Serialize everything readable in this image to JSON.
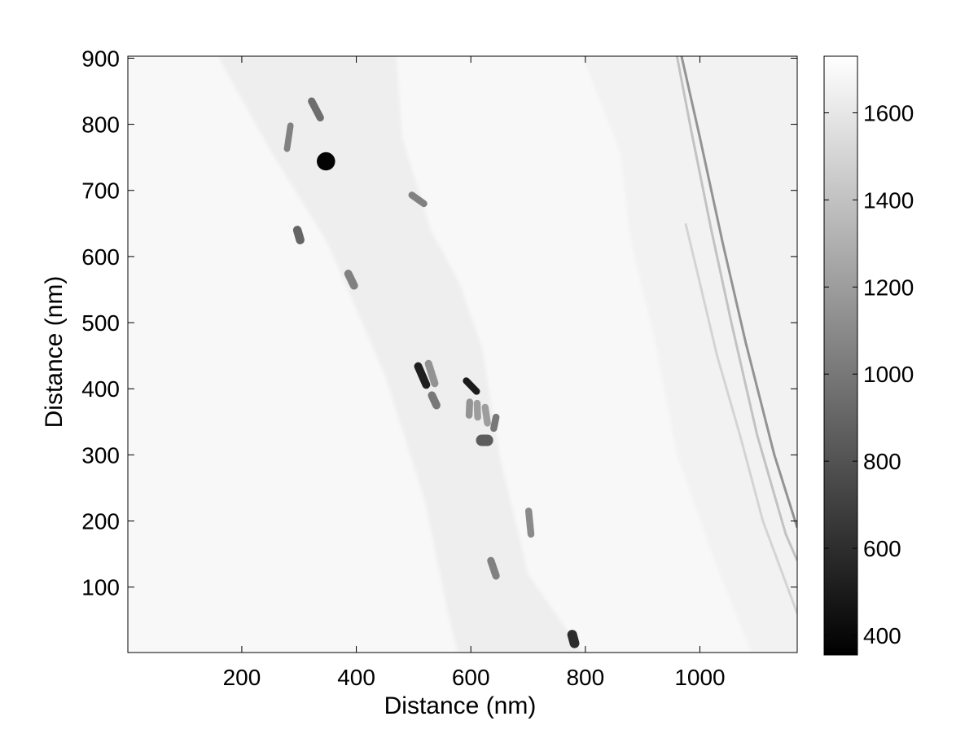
{
  "chart_data": {
    "type": "heatmap",
    "title": "",
    "xlabel": "Distance (nm)",
    "ylabel": "Distance (nm)",
    "xlim": [
      1,
      1170
    ],
    "ylim": [
      1,
      903
    ],
    "x_ticks": [
      200,
      400,
      600,
      800,
      1000
    ],
    "y_ticks": [
      100,
      200,
      300,
      400,
      500,
      600,
      700,
      800,
      900
    ],
    "colorbar": {
      "colormap": "gray",
      "range": [
        355,
        1730
      ],
      "ticks": [
        400,
        600,
        800,
        1000,
        1200,
        1400,
        1600
      ]
    },
    "background_level": 1690,
    "features": [
      {
        "kind": "strip",
        "description_level": 1640,
        "left_edge": [
          [
            158,
            903
          ],
          [
            250,
            760
          ],
          [
            350,
            620
          ],
          [
            450,
            420
          ],
          [
            520,
            230
          ],
          [
            560,
            60
          ],
          [
            577,
            1
          ]
        ],
        "right_edge": [
          [
            470,
            903
          ],
          [
            480,
            780
          ],
          [
            530,
            640
          ],
          [
            580,
            560
          ],
          [
            620,
            460
          ],
          [
            650,
            300
          ],
          [
            700,
            120
          ],
          [
            795,
            1
          ]
        ]
      },
      {
        "kind": "strip",
        "description_level": 1660,
        "left_edge": [
          [
            795,
            903
          ],
          [
            860,
            760
          ],
          [
            880,
            620
          ],
          [
            920,
            480
          ],
          [
            960,
            300
          ],
          [
            1030,
            130
          ],
          [
            1090,
            1
          ]
        ],
        "right_edge": [
          [
            1170,
            903
          ],
          [
            1170,
            1
          ]
        ]
      },
      {
        "kind": "line",
        "level": 1150,
        "points": [
          [
            968,
            903
          ],
          [
            1000,
            780
          ],
          [
            1040,
            620
          ],
          [
            1080,
            470
          ],
          [
            1130,
            300
          ],
          [
            1170,
            190
          ]
        ]
      },
      {
        "kind": "line",
        "level": 1400,
        "points": [
          [
            960,
            903
          ],
          [
            985,
            790
          ],
          [
            1020,
            640
          ],
          [
            1055,
            500
          ],
          [
            1100,
            330
          ],
          [
            1150,
            180
          ],
          [
            1170,
            140
          ]
        ]
      },
      {
        "kind": "line",
        "level": 1500,
        "points": [
          [
            975,
            650
          ],
          [
            1000,
            560
          ],
          [
            1030,
            450
          ],
          [
            1070,
            330
          ],
          [
            1110,
            200
          ],
          [
            1170,
            60
          ]
        ]
      },
      {
        "kind": "rod",
        "x": [
          322,
          337
        ],
        "y": [
          835,
          810
        ],
        "level": 950,
        "width": 13
      },
      {
        "kind": "rod",
        "x": [
          285,
          279
        ],
        "y": [
          798,
          763
        ],
        "level": 1050,
        "width": 11
      },
      {
        "kind": "dot",
        "x": 347,
        "y": 744,
        "r": 16,
        "level": 370
      },
      {
        "kind": "rod",
        "x": [
          497,
          518
        ],
        "y": [
          693,
          680
        ],
        "level": 1050,
        "width": 12
      },
      {
        "kind": "rod",
        "x": [
          297,
          302
        ],
        "y": [
          640,
          625
        ],
        "level": 900,
        "width": 15
      },
      {
        "kind": "rod",
        "x": [
          386,
          396
        ],
        "y": [
          574,
          556
        ],
        "level": 1050,
        "width": 14
      },
      {
        "kind": "rod",
        "x": [
          508,
          522
        ],
        "y": [
          434,
          406
        ],
        "level": 520,
        "width": 14
      },
      {
        "kind": "rod",
        "x": [
          526,
          537
        ],
        "y": [
          438,
          408
        ],
        "level": 1150,
        "width": 13
      },
      {
        "kind": "rod",
        "x": [
          532,
          540
        ],
        "y": [
          390,
          375
        ],
        "level": 1000,
        "width": 14
      },
      {
        "kind": "rod",
        "x": [
          592,
          610
        ],
        "y": [
          412,
          396
        ],
        "level": 500,
        "width": 12
      },
      {
        "kind": "rod",
        "x": [
          598,
          597
        ],
        "y": [
          380,
          360
        ],
        "level": 1150,
        "width": 12
      },
      {
        "kind": "rod",
        "x": [
          611,
          612
        ],
        "y": [
          378,
          357
        ],
        "level": 1200,
        "width": 12
      },
      {
        "kind": "rod",
        "x": [
          625,
          629
        ],
        "y": [
          372,
          348
        ],
        "level": 1200,
        "width": 12
      },
      {
        "kind": "rod",
        "x": [
          644,
          640
        ],
        "y": [
          357,
          340
        ],
        "level": 1000,
        "width": 12
      },
      {
        "kind": "rod",
        "x": [
          619,
          629
        ],
        "y": [
          322,
          322
        ],
        "level": 850,
        "width": 20
      },
      {
        "kind": "rod",
        "x": [
          701,
          705
        ],
        "y": [
          215,
          180
        ],
        "level": 1100,
        "width": 12
      },
      {
        "kind": "rod",
        "x": [
          635,
          644
        ],
        "y": [
          140,
          117
        ],
        "level": 1050,
        "width": 13
      },
      {
        "kind": "rod",
        "x": [
          777,
          781
        ],
        "y": [
          28,
          15
        ],
        "level": 600,
        "width": 17
      }
    ]
  }
}
